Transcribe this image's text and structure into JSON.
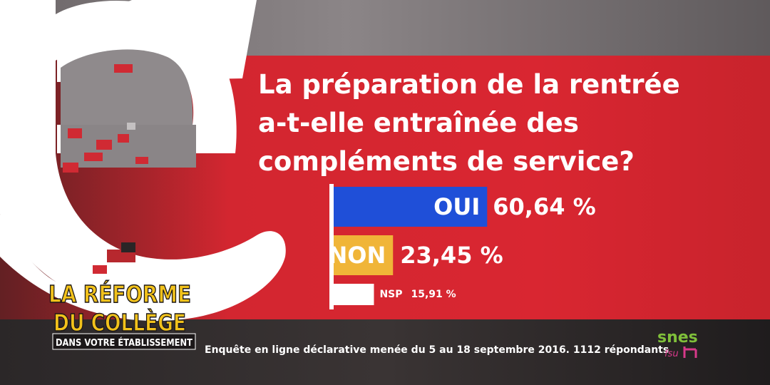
{
  "question_lines": [
    "La préparation de la rentrée",
    "a-t-elle entraînée des",
    "compléments de service?"
  ],
  "sources_text": "Enquête en ligne déclarative menée du 5 au 18 septembre 2016. 1112 répondants",
  "branding": {
    "logo_line1": "LA RÉFORME",
    "logo_line2": "DU COLLÈGE",
    "logo_line3": "DANS VOTRE ÉTABLISSEMENT",
    "union_logo": "snes",
    "union_logo_sub": "fsu"
  },
  "colors": {
    "band_red": "#d32630",
    "oui_bar": "#1f4fd8",
    "non_bar": "#f0b538",
    "nsp_bar": "#ffffff",
    "text_white": "#ffffff",
    "logo_yellow": "#f2c21b"
  },
  "chart_data": {
    "type": "bar",
    "orientation": "horizontal",
    "title": "La préparation de la rentrée a-t-elle entraînée des compléments de service?",
    "categories": [
      "OUI",
      "NON",
      "NSP"
    ],
    "values": [
      60.64,
      23.45,
      15.91
    ],
    "value_labels": [
      "60,64 %",
      "23,45 %",
      "15,91 %"
    ],
    "unit": "%",
    "xlim": [
      0,
      100
    ],
    "colors": [
      "#1f4fd8",
      "#f0b538",
      "#ffffff"
    ]
  }
}
